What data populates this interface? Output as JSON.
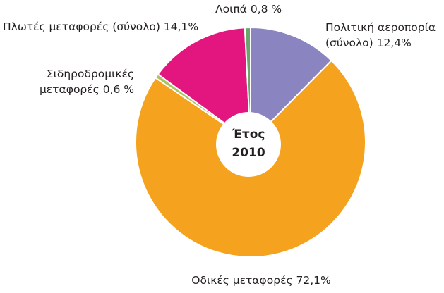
{
  "chart_data": {
    "type": "pie",
    "center_label": [
      "Έτος",
      "2010"
    ],
    "categories": [
      "Πολιτική αεροπορία (σύνολο)",
      "Οδικές μεταφορές",
      "Σιδηροδρομικές μεταφορές",
      "Πλωτές μεταφορές (σύνολο)",
      "Λοιπά"
    ],
    "values": [
      12.4,
      72.1,
      0.6,
      14.1,
      0.8
    ],
    "value_labels": [
      "12,4%",
      "72,1%",
      "0,6 %",
      "14,1%",
      "0,8 %"
    ],
    "colors": [
      "#8a84c0",
      "#f5a31e",
      "#a9c45c",
      "#e3157f",
      "#6aa56c"
    ]
  }
}
